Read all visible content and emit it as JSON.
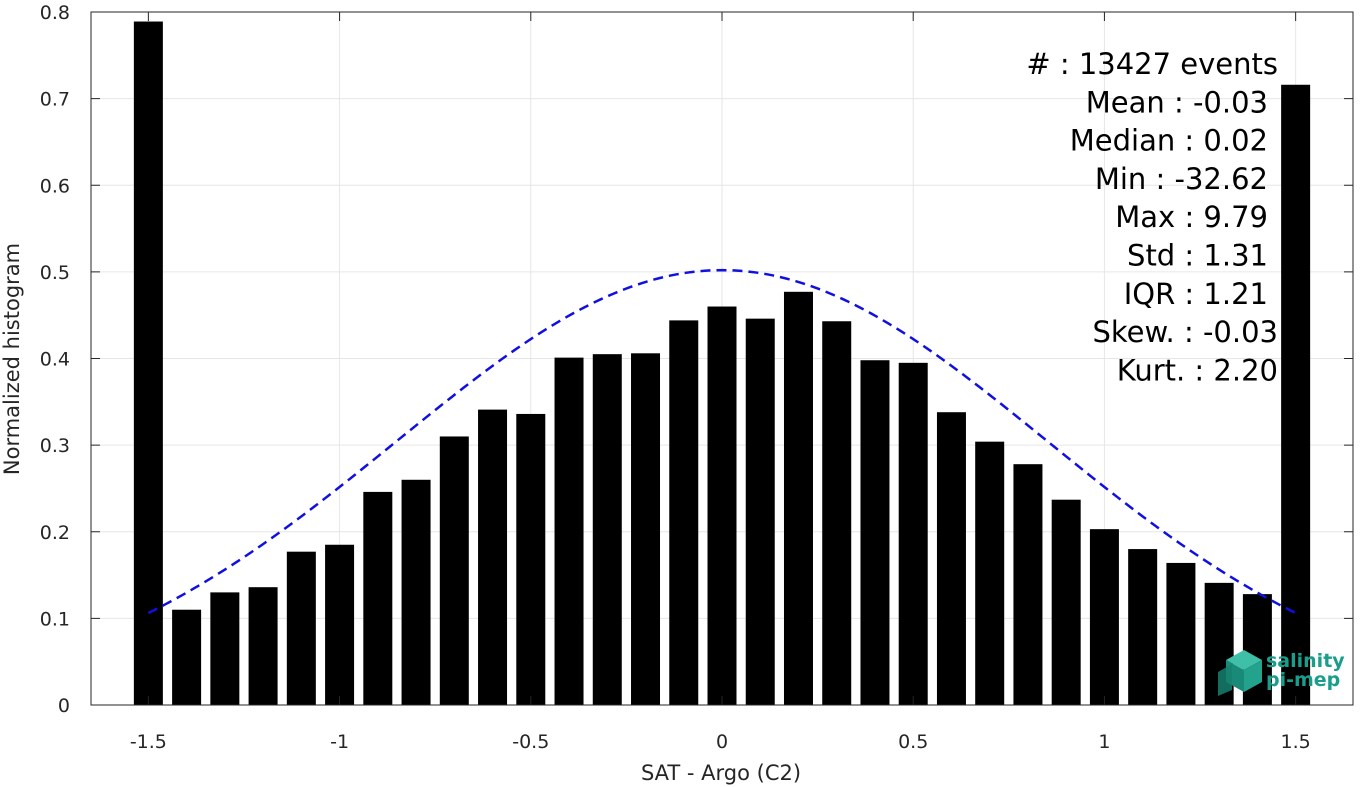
{
  "chart_data": {
    "type": "bar",
    "xlabel": "SAT - Argo (C2)",
    "ylabel": "Normalized histogram",
    "xlim": [
      -1.65,
      1.65
    ],
    "ylim": [
      0,
      0.8
    ],
    "x_ticks": [
      -1.5,
      -1,
      -0.5,
      0,
      0.5,
      1,
      1.5
    ],
    "x_tick_labels": [
      "-1.5",
      "-1",
      "-0.5",
      "0",
      "0.5",
      "1",
      "1.5"
    ],
    "y_ticks": [
      0,
      0.1,
      0.2,
      0.3,
      0.4,
      0.5,
      0.6,
      0.7,
      0.8
    ],
    "y_tick_labels": [
      "0",
      "0.1",
      "0.2",
      "0.3",
      "0.4",
      "0.5",
      "0.6",
      "0.7",
      "0.8"
    ],
    "grid": true,
    "bar_color": "#000000",
    "bars": {
      "x": [
        -1.5,
        -1.4,
        -1.3,
        -1.2,
        -1.1,
        -1.0,
        -0.9,
        -0.8,
        -0.7,
        -0.6,
        -0.5,
        -0.4,
        -0.3,
        -0.2,
        -0.1,
        0.0,
        0.1,
        0.2,
        0.3,
        0.4,
        0.5,
        0.6,
        0.7,
        0.8,
        0.9,
        1.0,
        1.1,
        1.2,
        1.3,
        1.4,
        1.5
      ],
      "values": [
        0.789,
        0.11,
        0.13,
        0.136,
        0.177,
        0.185,
        0.246,
        0.26,
        0.31,
        0.341,
        0.336,
        0.401,
        0.405,
        0.406,
        0.444,
        0.46,
        0.446,
        0.477,
        0.443,
        0.398,
        0.395,
        0.338,
        0.304,
        0.278,
        0.237,
        0.203,
        0.18,
        0.164,
        0.141,
        0.128,
        0.716
      ]
    },
    "fit_curve": {
      "style": "dashed",
      "color": "#1010e0",
      "x_range": [
        -1.5,
        1.5
      ],
      "mean": 0.0,
      "peak": 0.502,
      "sigma": 0.851
    },
    "stats": [
      "#  : 13427 events",
      "Mean : -0.03",
      "Median : 0.02",
      "Min : -32.62",
      "Max : 9.79",
      "Std : 1.31",
      "IQR : 1.21",
      "Skew. : -0.03",
      "Kurt. : 2.20"
    ]
  },
  "logo": {
    "line1": "salinity",
    "line2": "pi-mep",
    "color": "#1a9e8c"
  }
}
